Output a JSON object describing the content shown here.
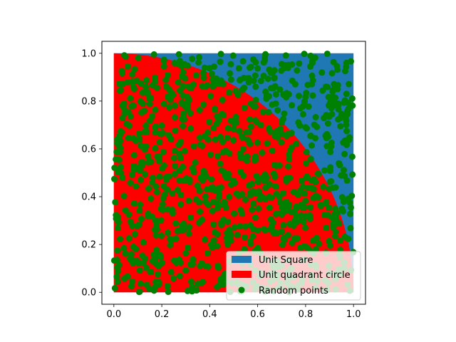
{
  "chart_data": {
    "type": "scatter",
    "title": "",
    "xlabel": "",
    "ylabel": "",
    "xlim": [
      -0.05,
      1.05
    ],
    "ylim": [
      -0.05,
      1.05
    ],
    "aspect": "equal",
    "grid": false,
    "x_ticks": [
      "0.0",
      "0.2",
      "0.4",
      "0.6",
      "0.8",
      "1.0"
    ],
    "y_ticks": [
      "0.0",
      "0.2",
      "0.4",
      "0.6",
      "0.8",
      "1.0"
    ],
    "legend": {
      "placement": "lower-right",
      "entries": [
        "Unit Square",
        "Unit quadrant circle",
        "Random points"
      ]
    },
    "series": [
      {
        "name": "Unit Square",
        "kind": "filled-area",
        "color": "#1f77b4",
        "x": [
          0,
          1,
          1,
          0
        ],
        "y": [
          0,
          0,
          1,
          1
        ]
      },
      {
        "name": "Unit quadrant circle",
        "kind": "filled-area",
        "color": "#ff0000",
        "shape": "quarter-circle",
        "center": [
          0,
          0
        ],
        "radius": 1
      },
      {
        "name": "Random points",
        "kind": "scatter",
        "color": "#008000",
        "count": 1000,
        "x_range": [
          0,
          1
        ],
        "y_range": [
          0,
          1
        ],
        "distribution": "uniform"
      }
    ]
  }
}
